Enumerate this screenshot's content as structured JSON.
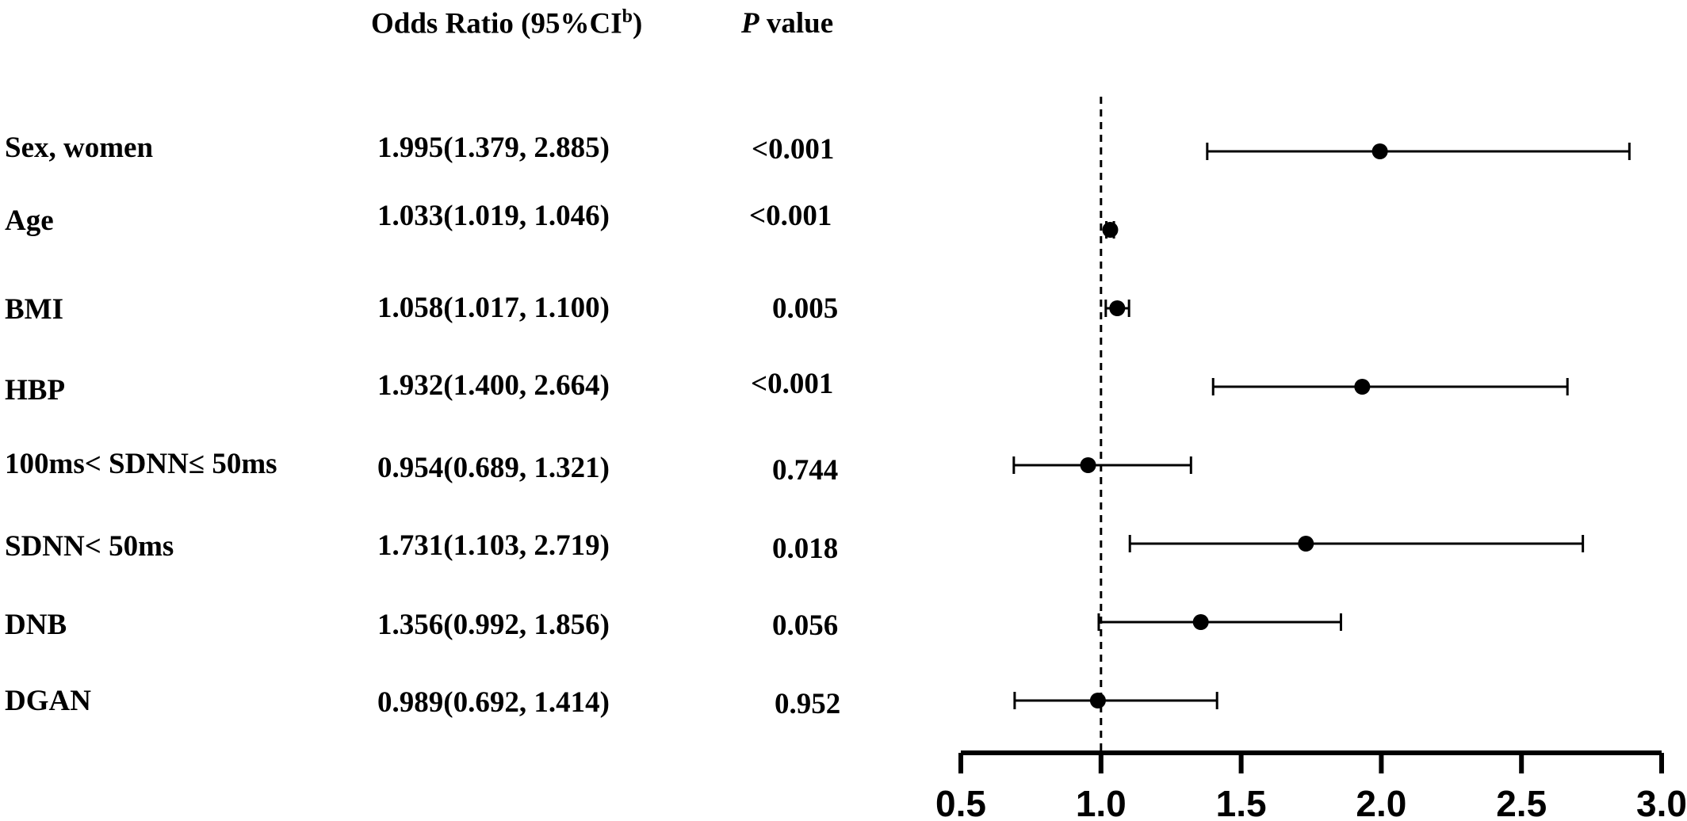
{
  "header": {
    "or_prefix": "Odds Ratio (95%CI",
    "or_sup": "b",
    "or_suffix": ")",
    "p_italic": "P",
    "p_rest": " value"
  },
  "rows": [
    {
      "label": "Sex, women",
      "or_text": "1.995(1.379, 2.885)",
      "p": "<0.001"
    },
    {
      "label": "Age",
      "or_text": "1.033(1.019, 1.046)",
      "p": "<0.001"
    },
    {
      "label": "BMI",
      "or_text": "1.058(1.017, 1.100)",
      "p": "0.005"
    },
    {
      "label": "HBP",
      "or_text": "1.932(1.400, 2.664)",
      "p": "<0.001"
    },
    {
      "label": "100ms< SDNN≤ 50ms",
      "or_text": "0.954(0.689, 1.321)",
      "p": "0.744"
    },
    {
      "label": "SDNN< 50ms",
      "or_text": "1.731(1.103, 2.719)",
      "p": "0.018"
    },
    {
      "label": "DNB",
      "or_text": "1.356(0.992, 1.856)",
      "p": "0.056"
    },
    {
      "label": "DGAN",
      "or_text": "0.989(0.692, 1.414)",
      "p": "0.952"
    }
  ],
  "chart_data": {
    "type": "forest",
    "xlim": [
      0.5,
      3.0
    ],
    "xticks": [
      "0.5",
      "1.0",
      "1.5",
      "2.0",
      "2.5",
      "3.0"
    ],
    "reference_line": 1.0,
    "points": [
      {
        "category": "Sex, women",
        "estimate": 1.995,
        "lower": 1.379,
        "upper": 2.885
      },
      {
        "category": "Age",
        "estimate": 1.033,
        "lower": 1.019,
        "upper": 1.046
      },
      {
        "category": "BMI",
        "estimate": 1.058,
        "lower": 1.017,
        "upper": 1.1
      },
      {
        "category": "HBP",
        "estimate": 1.932,
        "lower": 1.4,
        "upper": 2.664
      },
      {
        "category": "100ms< SDNN≤ 50ms",
        "estimate": 0.954,
        "lower": 0.689,
        "upper": 1.321
      },
      {
        "category": "SDNN< 50ms",
        "estimate": 1.731,
        "lower": 1.103,
        "upper": 2.719
      },
      {
        "category": "DNB",
        "estimate": 1.356,
        "lower": 0.992,
        "upper": 1.856
      },
      {
        "category": "DGAN",
        "estimate": 0.989,
        "lower": 0.692,
        "upper": 1.414
      }
    ],
    "marker_color": "#000000",
    "grid": false
  }
}
